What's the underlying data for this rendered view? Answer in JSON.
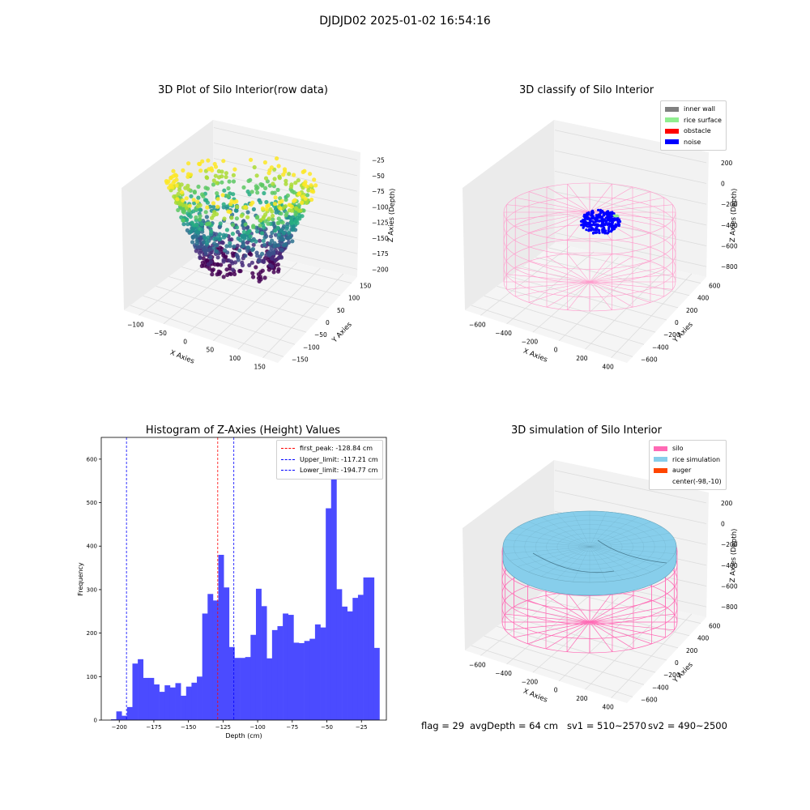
{
  "suptitle": "DJDJD02 2025-01-02 16:54:16",
  "footer": {
    "flag": "flag = 29",
    "avg_depth": "avgDepth = 64 cm",
    "sv1": "sv1 = 510~2570",
    "sv2": "sv2 = 490~2500"
  },
  "colors": {
    "histogram_bar": "#4b4bff",
    "first_peak_line": "#ff0000",
    "limit_lines": "#0000ff",
    "silo_wire": "#ff69b4",
    "rice_surface": "#87ceeb",
    "noise": "#0000ff",
    "auger": "#ff4500"
  },
  "chart_data": [
    {
      "type": "scatter",
      "title": "3D Plot of Silo Interior(row data)",
      "xlabel": "X Axies",
      "ylabel": "Y Axies",
      "zlabel": "Z Axies (Depth)",
      "x_ticks": [
        "−100",
        "−50",
        "0",
        "50",
        "100",
        "150"
      ],
      "y_ticks": [
        "−150",
        "−100",
        "−50",
        "0",
        "50",
        "100",
        "150"
      ],
      "z_ticks": [
        "−25",
        "−50",
        "−75",
        "−100",
        "−125",
        "−150",
        "−175",
        "−200"
      ],
      "colormap": "viridis"
    },
    {
      "type": "scatter",
      "title": "3D classify of Silo Interior",
      "xlabel": "X Axies",
      "ylabel": "Y Axies",
      "zlabel": "Z Axies (Depth)",
      "x_ticks": [
        "−600",
        "−400",
        "−200",
        "0",
        "200",
        "400"
      ],
      "y_ticks": [
        "−600",
        "−400",
        "−200",
        "0",
        "200",
        "400",
        "600"
      ],
      "z_ticks": [
        "200",
        "0",
        "−200",
        "−400",
        "−600",
        "−800"
      ],
      "legend": [
        {
          "label": "inner wall",
          "color": "#808080"
        },
        {
          "label": "rice surface",
          "color": "#90ee90"
        },
        {
          "label": "obstacle",
          "color": "#ff0000"
        },
        {
          "label": "noise",
          "color": "#0000ff"
        }
      ]
    },
    {
      "type": "bar",
      "title": "Histogram of Z-Axies (Height) Values",
      "xlabel": "Depth (cm)",
      "ylabel": "Frequency",
      "xlim": [
        -213,
        -7
      ],
      "ylim": [
        0,
        650
      ],
      "x_ticks": [
        -200,
        -175,
        -150,
        -125,
        -100,
        -75,
        -50,
        -25
      ],
      "y_ticks": [
        0,
        100,
        200,
        300,
        400,
        500,
        600
      ],
      "bin_start": -206,
      "bin_width": 3.88,
      "values": [
        2,
        20,
        10,
        30,
        130,
        140,
        97,
        97,
        82,
        65,
        80,
        75,
        85,
        56,
        77,
        86,
        100,
        245,
        290,
        275,
        380,
        305,
        168,
        143,
        143,
        145,
        196,
        302,
        262,
        142,
        207,
        216,
        245,
        242,
        178,
        177,
        182,
        187,
        220,
        213,
        487,
        620,
        301,
        261,
        250,
        281,
        288,
        328,
        328,
        166
      ],
      "reference_lines": [
        {
          "label": "first_peak: -128.84 cm",
          "value": -128.84,
          "color": "#ff0000"
        },
        {
          "label": "Upper_limit: -117.21 cm",
          "value": -117.21,
          "color": "#0000ff"
        },
        {
          "label": "Lower_limit: -194.77 cm",
          "value": -194.77,
          "color": "#0000ff"
        }
      ]
    },
    {
      "type": "area",
      "title": "3D simulation of Silo Interior",
      "xlabel": "X Axies",
      "ylabel": "Y Axies",
      "zlabel": "Z Axies (Depth)",
      "x_ticks": [
        "−600",
        "−400",
        "−200",
        "0",
        "200",
        "400"
      ],
      "y_ticks": [
        "−600",
        "−400",
        "−200",
        "0",
        "200",
        "400",
        "600"
      ],
      "z_ticks": [
        "200",
        "0",
        "−200",
        "−400",
        "−600",
        "−800"
      ],
      "legend": [
        {
          "label": "silo",
          "color": "#ff69b4"
        },
        {
          "label": "rice simulation",
          "color": "#87ceeb"
        },
        {
          "label": "auger",
          "color": "#ff4500"
        },
        {
          "label": "center(-98,-10)",
          "color": ""
        }
      ]
    }
  ]
}
